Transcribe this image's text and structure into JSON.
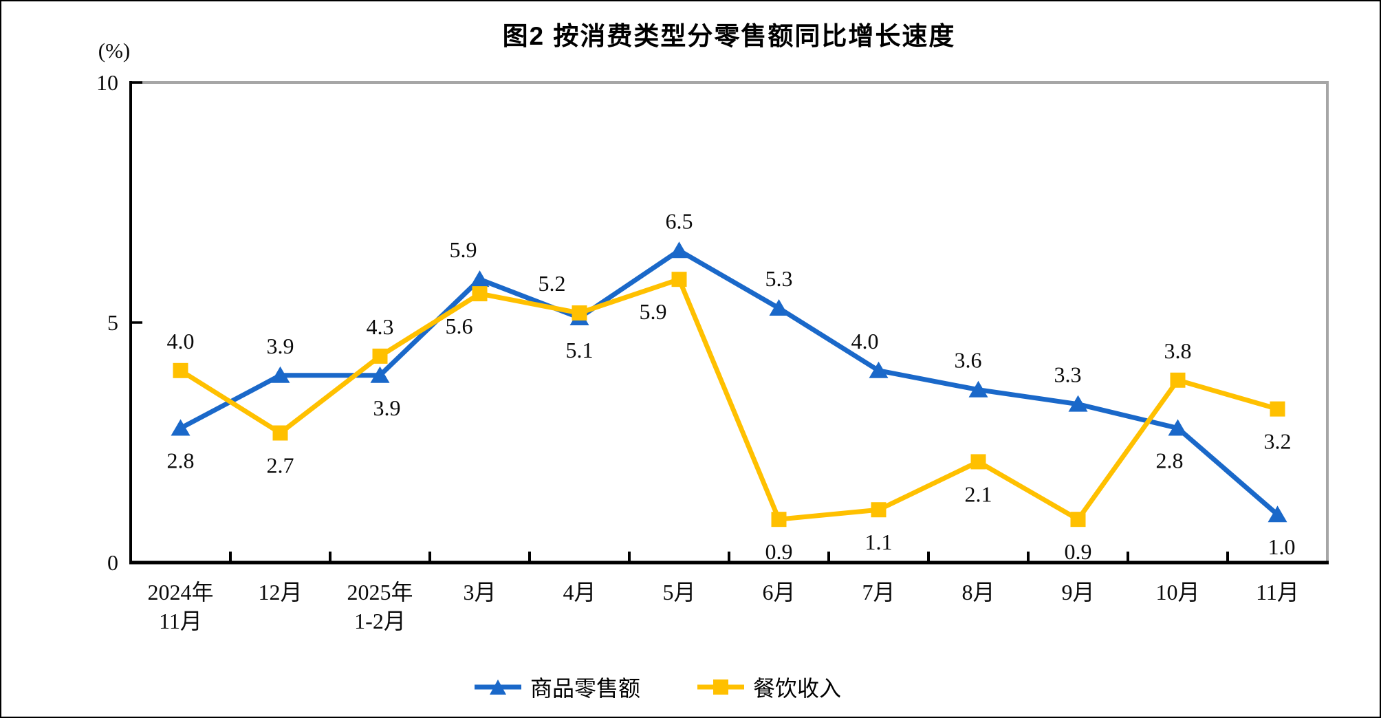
{
  "chart_data": {
    "type": "line",
    "title": "图2 按消费类型分零售额同比增长速度",
    "unit_label": "(%)",
    "categories": [
      [
        "2024年",
        "11月"
      ],
      [
        "12月"
      ],
      [
        "2025年",
        "1-2月"
      ],
      [
        "3月"
      ],
      [
        "4月"
      ],
      [
        "5月"
      ],
      [
        "6月"
      ],
      [
        "7月"
      ],
      [
        "8月"
      ],
      [
        "9月"
      ],
      [
        "10月"
      ],
      [
        "11月"
      ]
    ],
    "y_axis": {
      "min": 0,
      "max": 10,
      "ticks": [
        0,
        5,
        10
      ]
    },
    "grid": false,
    "legend_position": "bottom",
    "colors": {
      "axis": "#000000",
      "frame": "#A6A6A6",
      "data_label": "#0a0a0a"
    },
    "series": [
      {
        "name": "商品零售额",
        "color": "#1A68C9",
        "marker": "triangle",
        "values": [
          2.8,
          3.9,
          3.9,
          5.9,
          5.1,
          6.5,
          5.3,
          4.0,
          3.6,
          3.3,
          2.8,
          1.0
        ],
        "label_pos": [
          "below",
          "above",
          "below",
          "above",
          "below",
          "above",
          "above",
          "above",
          "above",
          "above",
          "below",
          "below"
        ],
        "label_dx": [
          0,
          0,
          10,
          -24,
          0,
          0,
          0,
          -20,
          -15,
          -15,
          -12,
          6
        ]
      },
      {
        "name": "餐饮收入",
        "color": "#FFC000",
        "marker": "square",
        "values": [
          4.0,
          2.7,
          4.3,
          5.6,
          5.2,
          5.9,
          0.9,
          1.1,
          2.1,
          0.9,
          3.8,
          3.2
        ],
        "label_pos": [
          "above",
          "below",
          "above",
          "below",
          "above",
          "below",
          "below",
          "below",
          "below",
          "below",
          "above",
          "below"
        ],
        "label_dx": [
          0,
          0,
          0,
          -30,
          -40,
          -38,
          0,
          0,
          0,
          0,
          0,
          0
        ]
      }
    ]
  }
}
